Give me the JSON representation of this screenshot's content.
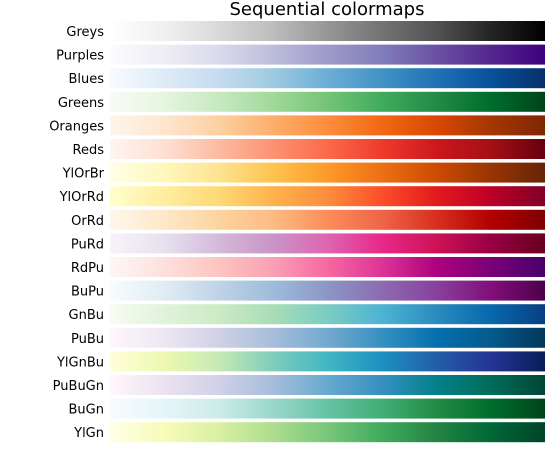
{
  "chart_data": {
    "type": "heatmap",
    "title": "Sequential colormaps",
    "xlabel": "",
    "ylabel": "",
    "grid": false,
    "colormaps": [
      {
        "name": "Greys",
        "colors": [
          "#ffffff",
          "#f0f0f0",
          "#d9d9d9",
          "#bdbdbd",
          "#969696",
          "#737373",
          "#525252",
          "#252525",
          "#000000"
        ]
      },
      {
        "name": "Purples",
        "colors": [
          "#fcfbfd",
          "#efedf5",
          "#dadaeb",
          "#bcbddc",
          "#9e9ac8",
          "#807dba",
          "#6a51a3",
          "#54278f",
          "#3f007d"
        ]
      },
      {
        "name": "Blues",
        "colors": [
          "#f7fbff",
          "#deebf7",
          "#c6dbef",
          "#9ecae1",
          "#6baed6",
          "#4292c6",
          "#2171b5",
          "#08519c",
          "#08306b"
        ]
      },
      {
        "name": "Greens",
        "colors": [
          "#f7fcf5",
          "#e5f5e0",
          "#c7e9c0",
          "#a1d99b",
          "#74c476",
          "#41ab5d",
          "#238b45",
          "#006d2c",
          "#00441b"
        ]
      },
      {
        "name": "Oranges",
        "colors": [
          "#fff5eb",
          "#fee6ce",
          "#fdd0a2",
          "#fdae6b",
          "#fd8d3c",
          "#f16913",
          "#d94801",
          "#a63603",
          "#7f2704"
        ]
      },
      {
        "name": "Reds",
        "colors": [
          "#fff5f0",
          "#fee0d2",
          "#fcbba1",
          "#fc9272",
          "#fb6a4a",
          "#ef3b2c",
          "#cb181d",
          "#a50f15",
          "#67000d"
        ]
      },
      {
        "name": "YlOrBr",
        "colors": [
          "#ffffe5",
          "#fff7bc",
          "#fee391",
          "#fec44f",
          "#fe9929",
          "#ec7014",
          "#cc4c02",
          "#993404",
          "#662506"
        ]
      },
      {
        "name": "YlOrRd",
        "colors": [
          "#ffffcc",
          "#ffeda0",
          "#fed976",
          "#feb24c",
          "#fd8d3c",
          "#fc4e2a",
          "#e31a1c",
          "#bd0026",
          "#800026"
        ]
      },
      {
        "name": "OrRd",
        "colors": [
          "#fff7ec",
          "#fee8c8",
          "#fdd49e",
          "#fdbb84",
          "#fc8d59",
          "#ef6548",
          "#d7301f",
          "#b30000",
          "#7f0000"
        ]
      },
      {
        "name": "PuRd",
        "colors": [
          "#f7f4f9",
          "#e7e1ef",
          "#d4b9da",
          "#c994c7",
          "#df65b0",
          "#e7298a",
          "#ce1256",
          "#980043",
          "#67001f"
        ]
      },
      {
        "name": "RdPu",
        "colors": [
          "#fff7f3",
          "#fde0dd",
          "#fcc5c0",
          "#fa9fb5",
          "#f768a1",
          "#dd3497",
          "#ae017e",
          "#7a0177",
          "#49006a"
        ]
      },
      {
        "name": "BuPu",
        "colors": [
          "#f7fcfd",
          "#e0ecf4",
          "#bfd3e6",
          "#9ebcda",
          "#8c96c6",
          "#8c6bb1",
          "#88419d",
          "#810f7c",
          "#4d004b"
        ]
      },
      {
        "name": "GnBu",
        "colors": [
          "#f7fcf0",
          "#e0f3db",
          "#ccebc5",
          "#a8ddb5",
          "#7bccc4",
          "#4eb3d3",
          "#2b8cbe",
          "#0868ac",
          "#084081"
        ]
      },
      {
        "name": "PuBu",
        "colors": [
          "#fff7fb",
          "#ece7f2",
          "#d0d1e6",
          "#a6bddb",
          "#74a9cf",
          "#3690c0",
          "#0570b0",
          "#045a8d",
          "#023858"
        ]
      },
      {
        "name": "YlGnBu",
        "colors": [
          "#ffffd9",
          "#edf8b1",
          "#c7e9b4",
          "#7fcdbb",
          "#41b6c4",
          "#1d91c0",
          "#225ea8",
          "#253494",
          "#081d58"
        ]
      },
      {
        "name": "PuBuGn",
        "colors": [
          "#fff7fb",
          "#ece2f0",
          "#d0d1e6",
          "#a6bddb",
          "#67a9cf",
          "#3690c0",
          "#02818a",
          "#016c59",
          "#014636"
        ]
      },
      {
        "name": "BuGn",
        "colors": [
          "#f7fcfd",
          "#e5f5f9",
          "#ccece6",
          "#99d8c9",
          "#66c2a4",
          "#41ae76",
          "#238b45",
          "#006d2c",
          "#00441b"
        ]
      },
      {
        "name": "YlGn",
        "colors": [
          "#ffffe5",
          "#f7fcb9",
          "#d9f0a3",
          "#addd8e",
          "#78c679",
          "#41ab5d",
          "#238443",
          "#006837",
          "#004529"
        ]
      }
    ]
  }
}
